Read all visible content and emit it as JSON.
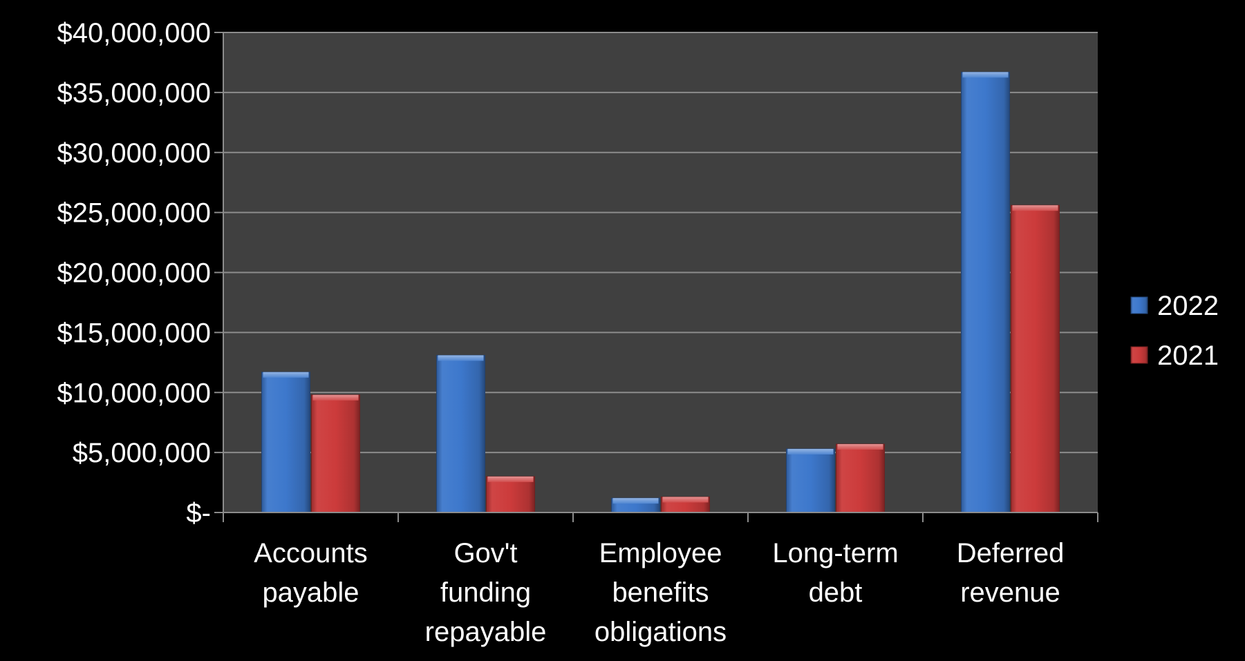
{
  "chart_data": {
    "type": "bar",
    "categories": [
      [
        "Accounts",
        "payable"
      ],
      [
        "Gov't",
        "funding",
        "repayable"
      ],
      [
        "Employee",
        "benefits",
        "obligations"
      ],
      [
        "Long-term",
        "debt"
      ],
      [
        "Deferred",
        "revenue"
      ]
    ],
    "series": [
      {
        "name": "2022",
        "color": "#3d78cc",
        "values": [
          11700000,
          13100000,
          1200000,
          5300000,
          36700000
        ]
      },
      {
        "name": "2021",
        "color": "#cc3b3b",
        "values": [
          9800000,
          3000000,
          1300000,
          5700000,
          25600000
        ]
      }
    ],
    "ylim": [
      0,
      40000000
    ],
    "y_ticks": [
      0,
      5000000,
      10000000,
      15000000,
      20000000,
      25000000,
      30000000,
      35000000,
      40000000
    ],
    "y_tick_labels": [
      "$-",
      "$5,000,000",
      "$10,000,000",
      "$15,000,000",
      "$20,000,000",
      "$25,000,000",
      "$30,000,000",
      "$35,000,000",
      "$40,000,000"
    ],
    "grid": true,
    "legend_position": "right",
    "plot_background": "#404040",
    "background": "#000000",
    "gridline_color": "#8c8c8c"
  }
}
